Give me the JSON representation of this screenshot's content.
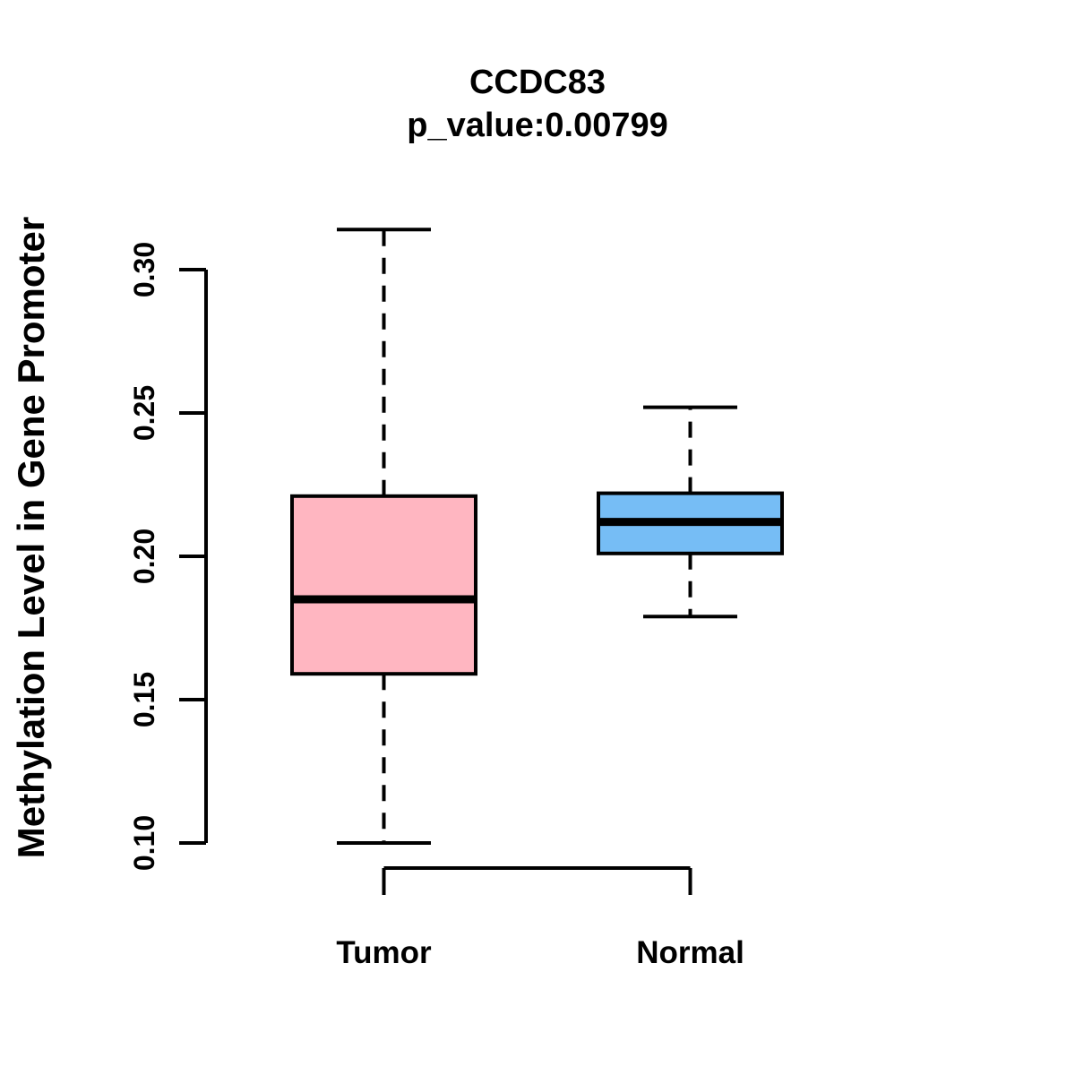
{
  "chart_data": {
    "type": "boxplot",
    "title": "CCDC83",
    "subtitle": "p_value:0.00799",
    "ylabel": "Methylation Level in Gene Promoter",
    "xlabel": "",
    "y_ticks": [
      "0.10",
      "0.15",
      "0.20",
      "0.25",
      "0.30"
    ],
    "ylim": [
      0.1,
      0.3
    ],
    "categories": [
      "Tumor",
      "Normal"
    ],
    "series": [
      {
        "name": "Tumor",
        "box_fill": "#FFB6C1",
        "whisker_low": 0.1,
        "q1": 0.159,
        "median": 0.185,
        "q3": 0.221,
        "whisker_high": 0.314
      },
      {
        "name": "Normal",
        "box_fill": "#76BDF5",
        "whisker_low": 0.179,
        "q1": 0.201,
        "median": 0.212,
        "q3": 0.222,
        "whisker_high": 0.252
      }
    ],
    "line_color": "#000000",
    "background_color": "#FFFFFF",
    "grid": "off",
    "legend": "none",
    "whisker_style": "dashed"
  }
}
